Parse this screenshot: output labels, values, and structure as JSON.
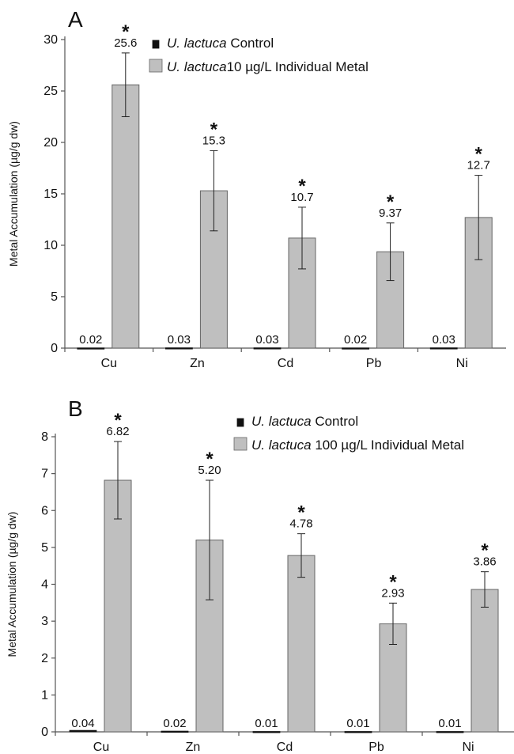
{
  "chart_data": [
    {
      "type": "bar",
      "panel_label": "A",
      "categories": [
        "Cu",
        "Zn",
        "Cd",
        "Pb",
        "Ni"
      ],
      "ylabel": "Metal Accumulation (µg/g dw)",
      "ylim": [
        0,
        30
      ],
      "yticks": [
        0,
        5,
        10,
        15,
        20,
        25,
        30
      ],
      "legend_position": "top-center",
      "significance_marker": "*",
      "series": [
        {
          "name_italic": "U. lactuca",
          "name_rest": " Control",
          "color": "#111111",
          "values": [
            0.02,
            0.03,
            0.03,
            0.02,
            0.03
          ],
          "labels": [
            "0.02",
            "0.03",
            "0.03",
            "0.02",
            "0.03"
          ]
        },
        {
          "name_italic": "U. lactuca",
          "name_rest": "10 µg/L Individual Metal",
          "color": "#bfbfbf",
          "values": [
            25.6,
            15.3,
            10.7,
            9.37,
            12.7
          ],
          "labels": [
            "25.6",
            "15.3",
            "10.7",
            "9.37",
            "12.7"
          ],
          "error": [
            3.1,
            3.9,
            3.0,
            2.8,
            4.1
          ],
          "significant": [
            true,
            true,
            true,
            true,
            true
          ]
        }
      ]
    },
    {
      "type": "bar",
      "panel_label": "B",
      "categories": [
        "Cu",
        "Zn",
        "Cd",
        "Pb",
        "Ni"
      ],
      "ylabel": "Metal Accumulation (µg/g dw)",
      "ylim": [
        0,
        8
      ],
      "yticks": [
        0,
        1,
        2,
        3,
        4,
        5,
        6,
        7,
        8
      ],
      "legend_position": "top-center",
      "significance_marker": "*",
      "series": [
        {
          "name_italic": "U. lactuca",
          "name_rest": " Control",
          "color": "#111111",
          "values": [
            0.04,
            0.02,
            0.01,
            0.01,
            0.01
          ],
          "labels": [
            "0.04",
            "0.02",
            "0.01",
            "0.01",
            "0.01"
          ]
        },
        {
          "name_italic": "U. lactuca",
          "name_rest": " 100 µg/L Individual Metal",
          "color": "#bfbfbf",
          "values": [
            6.82,
            5.2,
            4.78,
            2.93,
            3.86
          ],
          "labels": [
            "6.82",
            "5.20",
            "4.78",
            "2.93",
            "3.86"
          ],
          "error": [
            1.05,
            1.62,
            0.59,
            0.56,
            0.48
          ],
          "significant": [
            true,
            true,
            true,
            true,
            true
          ]
        }
      ]
    }
  ]
}
